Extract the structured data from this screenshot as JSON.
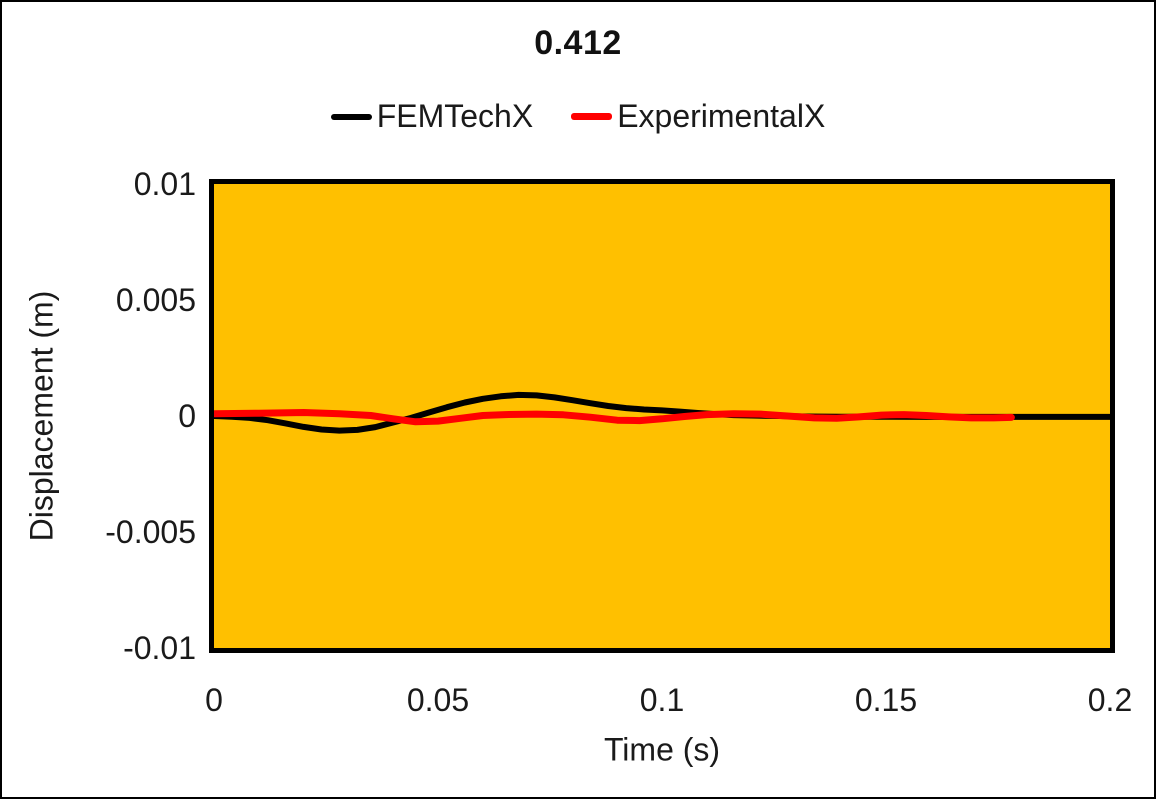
{
  "chart_data": {
    "type": "line",
    "title": "0.412",
    "legend_position": "top",
    "grid": false,
    "plot_background_color": "#FFC000",
    "plot_border_color": "#000000",
    "x_axis": {
      "title": "Time (s)",
      "min": 0,
      "max": 0.2,
      "tick_values": [
        0,
        0.05,
        0.1,
        0.15,
        0.2
      ],
      "tick_labels": [
        "0",
        "0.05",
        "0.1",
        "0.15",
        "0.2"
      ]
    },
    "y_axis": {
      "title": "Displacement (m)",
      "min": -0.01,
      "max": 0.01,
      "tick_values": [
        0.01,
        0.005,
        0,
        -0.005,
        -0.01
      ],
      "tick_labels": [
        "0.01",
        "0.005",
        "0",
        "-0.005",
        "-0.01"
      ]
    },
    "series": [
      {
        "name": "FEMTechX",
        "color": "#000000",
        "stroke_width": 6,
        "points": [
          [
            0.0,
            0.0
          ],
          [
            0.004,
            -3e-05
          ],
          [
            0.008,
            -8e-05
          ],
          [
            0.012,
            -0.00018
          ],
          [
            0.016,
            -0.00032
          ],
          [
            0.02,
            -0.00047
          ],
          [
            0.024,
            -0.00058
          ],
          [
            0.028,
            -0.00063
          ],
          [
            0.032,
            -0.0006
          ],
          [
            0.036,
            -0.00048
          ],
          [
            0.04,
            -0.00028
          ],
          [
            0.044,
            -8e-05
          ],
          [
            0.048,
            0.00015
          ],
          [
            0.052,
            0.00038
          ],
          [
            0.056,
            0.00058
          ],
          [
            0.06,
            0.00074
          ],
          [
            0.064,
            0.00085
          ],
          [
            0.068,
            0.00091
          ],
          [
            0.072,
            0.00089
          ],
          [
            0.076,
            0.0008
          ],
          [
            0.08,
            0.00068
          ],
          [
            0.084,
            0.00055
          ],
          [
            0.088,
            0.00043
          ],
          [
            0.092,
            0.00034
          ],
          [
            0.096,
            0.00028
          ],
          [
            0.1,
            0.00024
          ],
          [
            0.104,
            0.00019
          ],
          [
            0.108,
            0.00013
          ],
          [
            0.112,
            8e-05
          ],
          [
            0.116,
            4e-05
          ],
          [
            0.12,
            2e-05
          ],
          [
            0.126,
            0.0
          ],
          [
            0.132,
            -2e-05
          ],
          [
            0.14,
            -3e-05
          ],
          [
            0.15,
            -3e-05
          ],
          [
            0.16,
            -4e-05
          ],
          [
            0.17,
            -4e-05
          ],
          [
            0.18,
            -4e-05
          ],
          [
            0.19,
            -4e-05
          ],
          [
            0.2,
            -4e-05
          ]
        ]
      },
      {
        "name": "ExperimentalX",
        "color": "#FF0000",
        "stroke_width": 7,
        "points": [
          [
            0.0,
            0.0001
          ],
          [
            0.01,
            0.00012
          ],
          [
            0.02,
            0.00015
          ],
          [
            0.028,
            0.0001
          ],
          [
            0.035,
            2e-05
          ],
          [
            0.04,
            -0.00012
          ],
          [
            0.045,
            -0.00025
          ],
          [
            0.05,
            -0.00022
          ],
          [
            0.055,
            -0.0001
          ],
          [
            0.06,
            2e-05
          ],
          [
            0.065,
            6e-05
          ],
          [
            0.072,
            8e-05
          ],
          [
            0.078,
            5e-05
          ],
          [
            0.084,
            -5e-05
          ],
          [
            0.09,
            -0.00018
          ],
          [
            0.095,
            -0.0002
          ],
          [
            0.1,
            -0.00012
          ],
          [
            0.105,
            -2e-05
          ],
          [
            0.11,
            6e-05
          ],
          [
            0.116,
            0.0001
          ],
          [
            0.122,
            8e-05
          ],
          [
            0.128,
            0.0
          ],
          [
            0.134,
            -8e-05
          ],
          [
            0.139,
            -0.0001
          ],
          [
            0.144,
            -4e-05
          ],
          [
            0.149,
            4e-05
          ],
          [
            0.154,
            6e-05
          ],
          [
            0.159,
            2e-05
          ],
          [
            0.164,
            -4e-05
          ],
          [
            0.169,
            -8e-05
          ],
          [
            0.174,
            -8e-05
          ],
          [
            0.178,
            -6e-05
          ]
        ]
      }
    ]
  }
}
